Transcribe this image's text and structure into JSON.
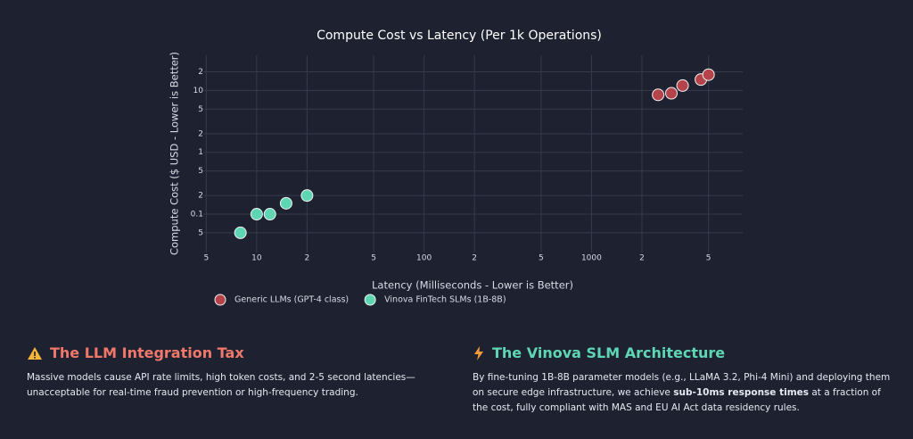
{
  "chart_data": {
    "type": "scatter",
    "title": "Compute Cost vs Latency (Per 1k Operations)",
    "x_label": "Latency (Milliseconds - Lower is Better)",
    "y_label": "Compute Cost ($ USD - Lower is Better)",
    "log_x": true,
    "log_y": true,
    "grid": true,
    "xlim": [
      4.8,
      8000
    ],
    "ylim": [
      0.024,
      37
    ],
    "xticks": [
      5,
      10,
      {
        "value": 20,
        "label": "2"
      },
      {
        "value": 50,
        "label": "5"
      },
      100,
      {
        "value": 200,
        "label": "2"
      },
      {
        "value": 500,
        "label": "5"
      },
      1000,
      {
        "value": 2000,
        "label": "2"
      },
      {
        "value": 5000,
        "label": "5"
      }
    ],
    "yticks": [
      {
        "value": 0.05,
        "label": "5"
      },
      0.1,
      {
        "value": 0.2,
        "label": "2"
      },
      {
        "value": 0.5,
        "label": "5"
      },
      1,
      2,
      5,
      10,
      {
        "value": 20,
        "label": "2"
      }
    ],
    "series": [
      {
        "name": "Generic LLMs (GPT-4 class)",
        "color": "#b5444a",
        "x": [
          2500,
          3000,
          3500,
          4500,
          5000
        ],
        "values": [
          8.5,
          9,
          12,
          15,
          18
        ]
      },
      {
        "name": "Vinova FinTech SLMs (1B-8B)",
        "color": "#5ed6b4",
        "x": [
          8,
          10,
          12,
          15,
          20
        ],
        "values": [
          0.05,
          0.1,
          0.1,
          0.15,
          0.2
        ]
      }
    ]
  },
  "cards": [
    {
      "title": "The LLM Integration Tax",
      "text": [
        "Massive models cause API rate limits, high token costs, and 2-5 second latencies—unacceptable for real-time fraud prevention or high-frequency trading."
      ]
    },
    {
      "title": "The Vinova SLM Architecture",
      "text": [
        "By fine-tuning 1B-8B parameter models (e.g., LLaMA 3.2, Phi-4 Mini) and deploying them on secure edge infrastructure, we achieve ",
        "sub-10ms response times",
        " at a fraction of the cost, fully compliant with MAS and EU AI Act data residency rules."
      ]
    }
  ]
}
